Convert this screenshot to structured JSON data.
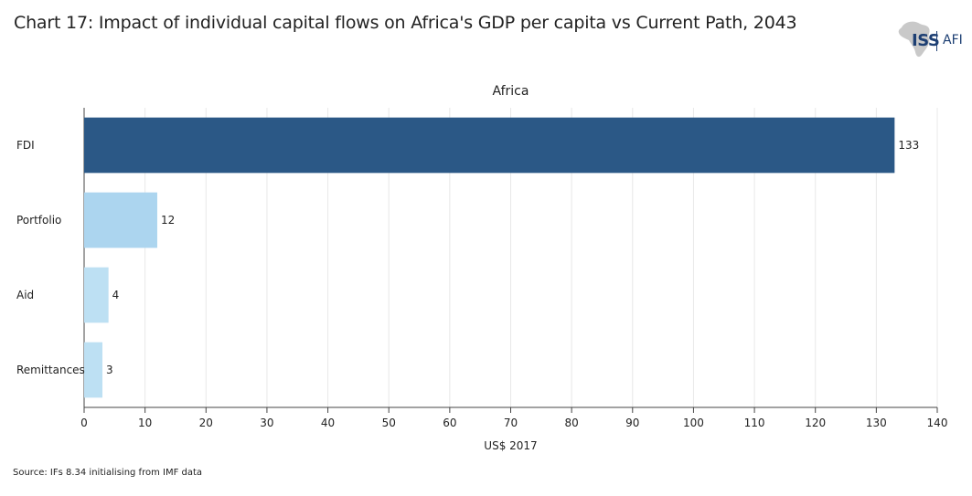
{
  "title": "Chart 17: Impact of individual capital flows on Africa's GDP per capita vs Current Path, 2043",
  "logo": {
    "main": "ISS",
    "secondary": "AFI"
  },
  "source": "Source: IFs 8.34 initialising from IMF data",
  "colors": {
    "fdi": "#2b5886",
    "portfolio": "#acd5ef",
    "aid": "#bde0f3",
    "remittances": "#bde0f3",
    "grid": "#e8e8e8"
  },
  "chart_data": {
    "type": "bar",
    "orientation": "horizontal",
    "subtitle": "Africa",
    "categories": [
      "FDI",
      "Portfolio",
      "Aid",
      "Remittances"
    ],
    "values": [
      133,
      12,
      4,
      3
    ],
    "data_labels": [
      "133",
      "12",
      "4",
      "3"
    ],
    "xlabel": "US$ 2017",
    "ylabel": "",
    "xlim": [
      0,
      140
    ],
    "xticks": [
      0,
      10,
      20,
      30,
      40,
      50,
      60,
      70,
      80,
      90,
      100,
      110,
      120,
      130,
      140
    ],
    "grid": true
  }
}
